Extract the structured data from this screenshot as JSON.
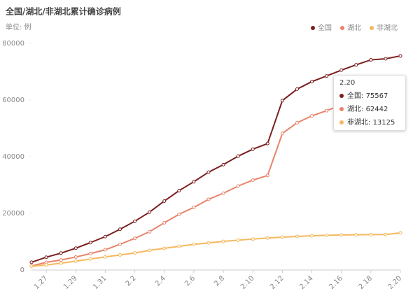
{
  "chart_data": {
    "type": "line",
    "title": "全国/湖北/非湖北累计确诊病例",
    "subtitle": "单位: 例",
    "categories": [
      null,
      "1.27",
      null,
      "1.29",
      null,
      "1.31",
      null,
      "2.2",
      null,
      "2.4",
      null,
      "2.6",
      null,
      "2.8",
      null,
      "2.10",
      null,
      "2.12",
      null,
      "2.14",
      null,
      "2.16",
      null,
      "2.18",
      null,
      "2.20"
    ],
    "series": [
      {
        "name": "全国",
        "color": "#7b1f1f",
        "values": [
          2744,
          4515,
          5974,
          7711,
          9692,
          11791,
          14380,
          17205,
          20438,
          24324,
          28018,
          31161,
          34546,
          37198,
          40171,
          42638,
          44653,
          59804,
          63851,
          66492,
          68500,
          70548,
          72436,
          74185,
          74576,
          75567
        ]
      },
      {
        "name": "湖北",
        "color": "#e8846a",
        "values": [
          1423,
          2714,
          3554,
          4586,
          5806,
          7153,
          9074,
          11177,
          13522,
          16678,
          19665,
          22112,
          24953,
          27100,
          29631,
          31728,
          33366,
          48206,
          51986,
          54406,
          56249,
          58182,
          59989,
          61682,
          62031,
          62442
        ]
      },
      {
        "name": "非湖北",
        "color": "#f5b85c",
        "values": [
          1321,
          1801,
          2420,
          3125,
          3886,
          4638,
          5306,
          6028,
          6916,
          7646,
          8353,
          9049,
          9593,
          10098,
          10540,
          10910,
          11287,
          11598,
          11865,
          12086,
          12251,
          12366,
          12447,
          12503,
          12545,
          13125
        ]
      }
    ],
    "ylim": [
      0,
      80000
    ],
    "yticks": [
      0,
      20000,
      40000,
      60000,
      80000
    ],
    "legend": "top-right",
    "tooltip": {
      "category_index": 25
    }
  }
}
